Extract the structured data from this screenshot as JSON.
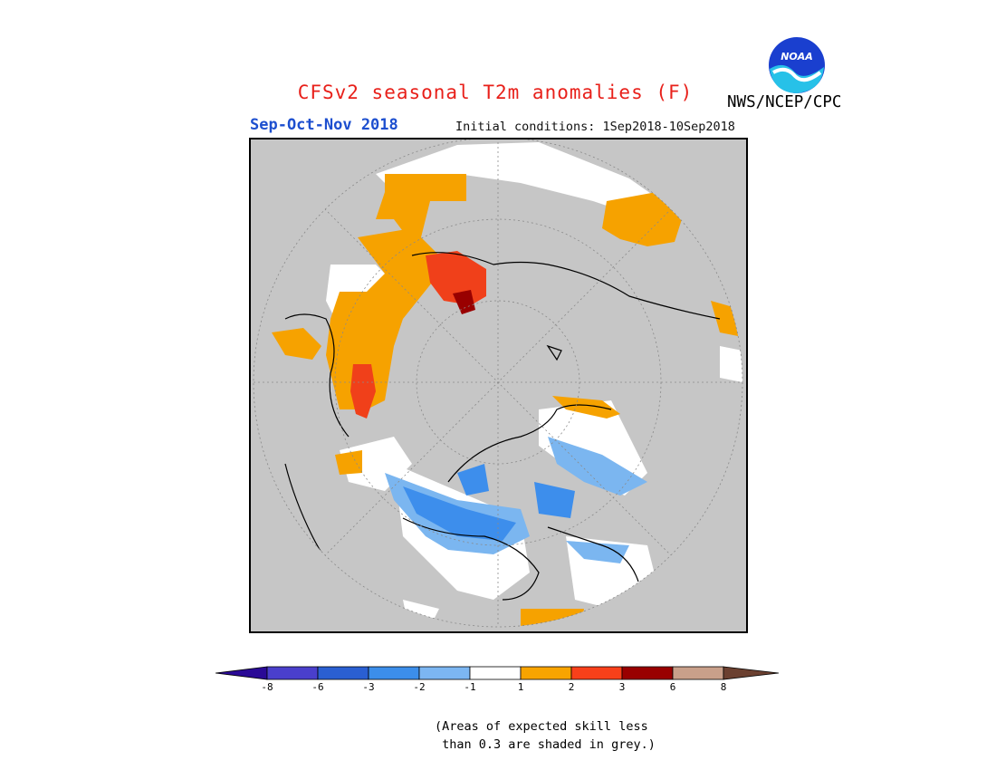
{
  "title": "CFSv2 seasonal T2m anomalies (F)",
  "period": "Sep-Oct-Nov 2018",
  "initial_conditions": "Initial conditions: 1Sep2018-10Sep2018",
  "agency": "NWS/NCEP/CPC",
  "logo_text": "NOAA",
  "colors": {
    "title": "#e8201a",
    "period": "#1d4fcf",
    "no_skill": "#c6c6c6",
    "white": "#ffffff",
    "orange": "#f6a200",
    "red": "#f0401a",
    "dark_red": "#990000",
    "blue_light": "#7bb6f0",
    "blue": "#3d8eec"
  },
  "colorbar": {
    "colors": [
      "#2a0a96",
      "#4a3fcc",
      "#2a5fd2",
      "#3c8eea",
      "#7cb6f2",
      "#ffffff",
      "#f8a400",
      "#f8401a",
      "#990000",
      "#c9a08a",
      "#6b4030"
    ],
    "labels": [
      "-8",
      "-6",
      "-3",
      "-2",
      "-1",
      "1",
      "2",
      "3",
      "6",
      "8"
    ]
  },
  "note": "(Areas of expected skill less\n than 0.3 are shaded in grey.)"
}
